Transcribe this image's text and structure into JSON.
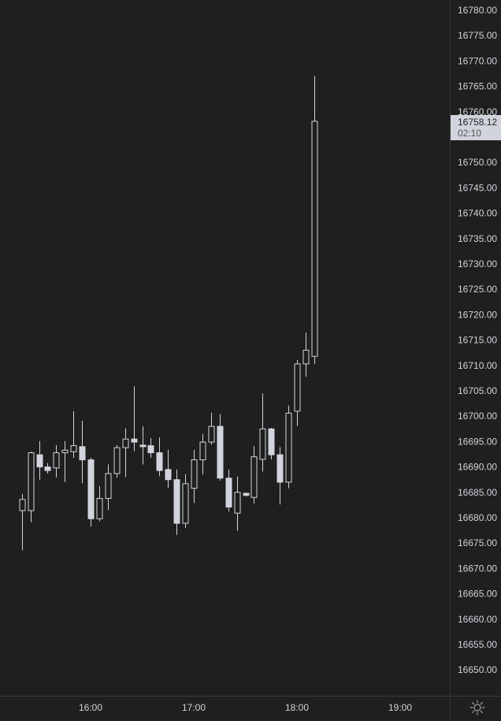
{
  "chart_data": {
    "type": "candlestick",
    "ylim": [
      16645,
      16781
    ],
    "y_ticks": [
      "16780.00",
      "16775.00",
      "16770.00",
      "16765.00",
      "16760.00",
      "16755.00",
      "16750.00",
      "16745.00",
      "16740.00",
      "16735.00",
      "16730.00",
      "16725.00",
      "16720.00",
      "16715.00",
      "16710.00",
      "16705.00",
      "16700.00",
      "16695.00",
      "16690.00",
      "16685.00",
      "16680.00",
      "16675.00",
      "16670.00",
      "16665.00",
      "16660.00",
      "16655.00",
      "16650.00"
    ],
    "x_ticks": [
      {
        "label": "16:00",
        "time": "16:00"
      },
      {
        "label": "17:00",
        "time": "17:00"
      },
      {
        "label": "18:00",
        "time": "18:00"
      },
      {
        "label": "19:00",
        "time": "19:00"
      }
    ],
    "candles": [
      {
        "time": "15:20",
        "open": 16681.4,
        "high": 16684.7,
        "low": 16673.6,
        "close": 16683.6
      },
      {
        "time": "15:25",
        "open": 16681.4,
        "high": 16693.0,
        "low": 16679.1,
        "close": 16692.8
      },
      {
        "time": "15:30",
        "open": 16692.4,
        "high": 16695.1,
        "low": 16687.5,
        "close": 16690.0
      },
      {
        "time": "15:35",
        "open": 16690.0,
        "high": 16690.8,
        "low": 16688.7,
        "close": 16689.3
      },
      {
        "time": "15:40",
        "open": 16689.8,
        "high": 16694.3,
        "low": 16687.9,
        "close": 16692.8
      },
      {
        "time": "15:45",
        "open": 16692.8,
        "high": 16695.1,
        "low": 16687.0,
        "close": 16693.3
      },
      {
        "time": "15:50",
        "open": 16693.0,
        "high": 16701.0,
        "low": 16691.8,
        "close": 16694.2
      },
      {
        "time": "15:55",
        "open": 16694.0,
        "high": 16699.1,
        "low": 16686.8,
        "close": 16691.4
      },
      {
        "time": "16:00",
        "open": 16691.4,
        "high": 16691.8,
        "low": 16678.3,
        "close": 16679.8
      },
      {
        "time": "16:05",
        "open": 16679.8,
        "high": 16686.2,
        "low": 16679.3,
        "close": 16683.8
      },
      {
        "time": "16:10",
        "open": 16683.8,
        "high": 16690.5,
        "low": 16681.5,
        "close": 16688.7
      },
      {
        "time": "16:15",
        "open": 16688.7,
        "high": 16694.3,
        "low": 16687.9,
        "close": 16693.8
      },
      {
        "time": "16:20",
        "open": 16693.8,
        "high": 16697.6,
        "low": 16688.0,
        "close": 16695.5
      },
      {
        "time": "16:25",
        "open": 16695.5,
        "high": 16705.9,
        "low": 16693.1,
        "close": 16694.9
      },
      {
        "time": "16:30",
        "open": 16694.3,
        "high": 16698.0,
        "low": 16690.5,
        "close": 16694.0
      },
      {
        "time": "16:35",
        "open": 16694.2,
        "high": 16695.7,
        "low": 16691.8,
        "close": 16692.8
      },
      {
        "time": "16:40",
        "open": 16692.8,
        "high": 16695.8,
        "low": 16688.2,
        "close": 16689.3
      },
      {
        "time": "16:45",
        "open": 16689.5,
        "high": 16693.4,
        "low": 16685.9,
        "close": 16687.5
      },
      {
        "time": "16:50",
        "open": 16687.5,
        "high": 16689.5,
        "low": 16676.6,
        "close": 16678.9
      },
      {
        "time": "16:55",
        "open": 16678.9,
        "high": 16688.6,
        "low": 16678.0,
        "close": 16686.7
      },
      {
        "time": "17:00",
        "open": 16685.8,
        "high": 16693.4,
        "low": 16682.9,
        "close": 16691.4
      },
      {
        "time": "17:05",
        "open": 16691.4,
        "high": 16696.5,
        "low": 16688.5,
        "close": 16694.9
      },
      {
        "time": "17:10",
        "open": 16694.9,
        "high": 16700.7,
        "low": 16694.4,
        "close": 16698.0
      },
      {
        "time": "17:15",
        "open": 16698.0,
        "high": 16700.4,
        "low": 16687.3,
        "close": 16687.8
      },
      {
        "time": "17:20",
        "open": 16687.8,
        "high": 16689.5,
        "low": 16681.2,
        "close": 16682.1
      },
      {
        "time": "17:25",
        "open": 16680.9,
        "high": 16688.1,
        "low": 16677.4,
        "close": 16685.0
      },
      {
        "time": "17:30",
        "open": 16684.8,
        "high": 16685.0,
        "low": 16684.2,
        "close": 16684.4
      },
      {
        "time": "17:35",
        "open": 16684.0,
        "high": 16694.1,
        "low": 16682.8,
        "close": 16692.0
      },
      {
        "time": "17:40",
        "open": 16691.5,
        "high": 16704.5,
        "low": 16689.1,
        "close": 16697.5
      },
      {
        "time": "17:45",
        "open": 16697.5,
        "high": 16697.7,
        "low": 16691.5,
        "close": 16692.4
      },
      {
        "time": "17:50",
        "open": 16692.4,
        "high": 16693.9,
        "low": 16682.6,
        "close": 16687.0
      },
      {
        "time": "17:55",
        "open": 16687.0,
        "high": 16702.1,
        "low": 16685.8,
        "close": 16700.6
      },
      {
        "time": "18:00",
        "open": 16701.0,
        "high": 16711.1,
        "low": 16698.1,
        "close": 16710.3
      },
      {
        "time": "18:05",
        "open": 16710.3,
        "high": 16716.5,
        "low": 16707.8,
        "close": 16713.0
      },
      {
        "time": "18:10",
        "open": 16711.8,
        "high": 16767.0,
        "low": 16710.3,
        "close": 16758.12
      }
    ],
    "last_price": "16758.12",
    "countdown": "02:10",
    "colors": {
      "background": "#1f1f1f",
      "candle": "#d1d4dc",
      "hollow_fill": "#1f1f1f",
      "axis_text": "#d1d4dc",
      "axis_line": "#3a3a3a"
    }
  },
  "icons": {
    "settings": "gear-icon"
  }
}
